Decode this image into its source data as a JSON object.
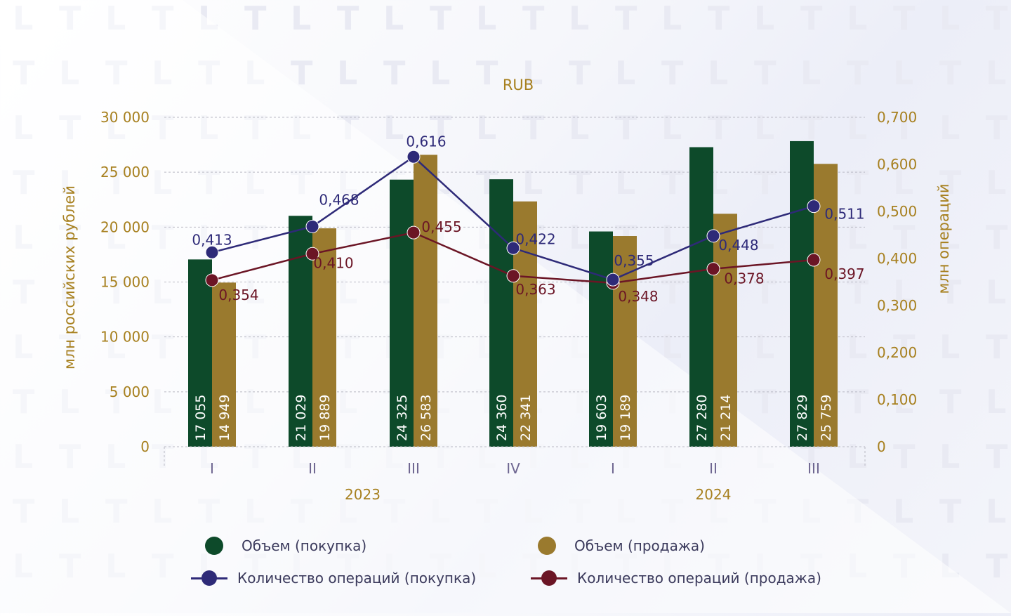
{
  "colors": {
    "buy_volume": "#0d4a2a",
    "sell_volume": "#9a7a2e",
    "buy_ops": "#2e2a78",
    "sell_ops": "#6b1525",
    "axis_text": "#a7801f",
    "grid": "#b9b9c4"
  },
  "legend": {
    "buy_volume": "Объем (покупка)",
    "sell_volume": "Объем (продажа)",
    "buy_ops": "Количество операций (покупка)",
    "sell_ops": "Количество операций (продажа)"
  },
  "chart_data": {
    "type": "bar",
    "title": "RUB",
    "ylabel": "млн российских рублей",
    "ylabel_right": "млн операций",
    "ylim": [
      0,
      30000
    ],
    "ylim_right": [
      0,
      0.7
    ],
    "yticks": [
      "0",
      "5 000",
      "10 000",
      "15 000",
      "20 000",
      "25 000",
      "30 000"
    ],
    "yticks_right": [
      "0",
      "0,100",
      "0,200",
      "0,300",
      "0,400",
      "0,500",
      "0,600",
      "0,700"
    ],
    "categories": [
      "I",
      "II",
      "III",
      "IV",
      "I",
      "II",
      "III"
    ],
    "groups": [
      {
        "label": "2023",
        "span": [
          0,
          3
        ]
      },
      {
        "label": "2024",
        "span": [
          4,
          6
        ]
      }
    ],
    "grid": true,
    "legend_position": "bottom",
    "series": [
      {
        "name": "Объем (покупка)",
        "type": "bar",
        "axis": "left",
        "values": [
          17055,
          21029,
          24325,
          24360,
          19603,
          27280,
          27829
        ],
        "labels": [
          "17 055",
          "21 029",
          "24 325",
          "24 360",
          "19 603",
          "27 280",
          "27 829"
        ]
      },
      {
        "name": "Объем (продажа)",
        "type": "bar",
        "axis": "left",
        "values": [
          14949,
          19889,
          26583,
          22341,
          19189,
          21214,
          25759
        ],
        "labels": [
          "14 949",
          "19 889",
          "26 583",
          "22 341",
          "19 189",
          "21 214",
          "25 759"
        ]
      },
      {
        "name": "Количество операций (покупка)",
        "type": "line",
        "axis": "right",
        "values": [
          0.413,
          0.468,
          0.616,
          0.422,
          0.355,
          0.448,
          0.511
        ],
        "labels": [
          "0,413",
          "0,468",
          "0,616",
          "0,422",
          "0,355",
          "0,448",
          "0,511"
        ]
      },
      {
        "name": "Количество операций (продажа)",
        "type": "line",
        "axis": "right",
        "values": [
          0.354,
          0.41,
          0.455,
          0.363,
          0.348,
          0.378,
          0.397
        ],
        "labels": [
          "0,354",
          "0,410",
          "0,455",
          "0,363",
          "0,348",
          "0,378",
          "0,397"
        ]
      }
    ]
  }
}
